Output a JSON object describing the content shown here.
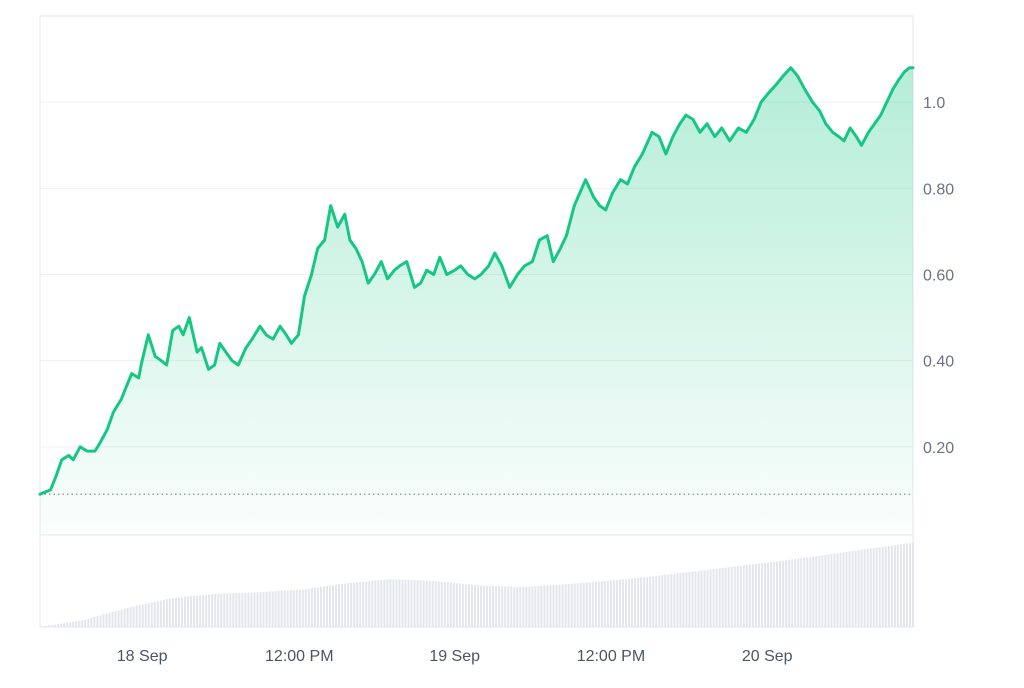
{
  "chart_data": {
    "type": "area",
    "title": "",
    "xlabel": "",
    "ylabel": "",
    "line_color": "#16c784",
    "fill_color": "#16c784",
    "baseline_value": 0.09,
    "ylim": [
      0,
      1.2
    ],
    "y_ticks": [
      {
        "value": 0.2,
        "label": "0.20"
      },
      {
        "value": 0.4,
        "label": "0.40"
      },
      {
        "value": 0.6,
        "label": "0.60"
      },
      {
        "value": 0.8,
        "label": "0.80"
      },
      {
        "value": 1.0,
        "label": "1.0"
      }
    ],
    "x_ticks": [
      {
        "t": 0.117,
        "label": "18 Sep"
      },
      {
        "t": 0.297,
        "label": "12:00 PM"
      },
      {
        "t": 0.475,
        "label": "19 Sep"
      },
      {
        "t": 0.654,
        "label": "12:00 PM"
      },
      {
        "t": 0.833,
        "label": "20 Sep"
      }
    ],
    "series": [
      {
        "x": [
          0.0,
          0.012,
          0.018,
          0.025,
          0.033,
          0.038,
          0.046,
          0.054,
          0.063,
          0.069,
          0.077,
          0.084,
          0.093,
          0.099,
          0.105,
          0.113,
          0.117,
          0.124,
          0.132,
          0.139,
          0.145,
          0.152,
          0.159,
          0.164,
          0.171,
          0.18,
          0.185,
          0.193,
          0.2,
          0.206,
          0.213,
          0.22,
          0.227,
          0.236,
          0.243,
          0.252,
          0.259,
          0.267,
          0.275,
          0.282,
          0.288,
          0.296,
          0.303,
          0.311,
          0.318,
          0.326,
          0.333,
          0.341,
          0.349,
          0.355,
          0.362,
          0.369,
          0.376,
          0.383,
          0.391,
          0.398,
          0.406,
          0.412,
          0.42,
          0.429,
          0.436,
          0.443,
          0.451,
          0.458,
          0.466,
          0.475,
          0.482,
          0.49,
          0.498,
          0.505,
          0.514,
          0.521,
          0.529,
          0.538,
          0.547,
          0.555,
          0.564,
          0.572,
          0.581,
          0.588,
          0.596,
          0.603,
          0.612,
          0.625,
          0.634,
          0.641,
          0.648,
          0.656,
          0.665,
          0.673,
          0.681,
          0.69,
          0.701,
          0.709,
          0.717,
          0.725,
          0.733,
          0.74,
          0.748,
          0.756,
          0.764,
          0.773,
          0.781,
          0.79,
          0.8,
          0.809,
          0.818,
          0.826,
          0.834,
          0.843,
          0.851,
          0.86,
          0.868,
          0.876,
          0.885,
          0.893,
          0.9,
          0.908,
          0.915,
          0.921,
          0.928,
          0.935,
          0.941,
          0.949,
          0.956,
          0.963,
          0.97,
          0.977,
          0.983,
          0.99,
          0.996,
          1.0
        ],
        "values": [
          0.09,
          0.1,
          0.13,
          0.17,
          0.18,
          0.17,
          0.2,
          0.19,
          0.19,
          0.21,
          0.24,
          0.28,
          0.31,
          0.34,
          0.37,
          0.36,
          0.4,
          0.46,
          0.41,
          0.4,
          0.39,
          0.47,
          0.48,
          0.46,
          0.5,
          0.42,
          0.43,
          0.38,
          0.39,
          0.44,
          0.42,
          0.4,
          0.39,
          0.43,
          0.45,
          0.48,
          0.46,
          0.45,
          0.48,
          0.46,
          0.44,
          0.46,
          0.55,
          0.6,
          0.66,
          0.68,
          0.76,
          0.71,
          0.74,
          0.68,
          0.66,
          0.63,
          0.58,
          0.6,
          0.63,
          0.59,
          0.61,
          0.62,
          0.63,
          0.57,
          0.58,
          0.61,
          0.6,
          0.64,
          0.6,
          0.61,
          0.62,
          0.6,
          0.59,
          0.6,
          0.62,
          0.65,
          0.62,
          0.57,
          0.6,
          0.62,
          0.63,
          0.68,
          0.69,
          0.63,
          0.66,
          0.69,
          0.76,
          0.82,
          0.78,
          0.76,
          0.75,
          0.79,
          0.82,
          0.81,
          0.85,
          0.88,
          0.93,
          0.92,
          0.88,
          0.92,
          0.95,
          0.97,
          0.96,
          0.93,
          0.95,
          0.92,
          0.94,
          0.91,
          0.94,
          0.93,
          0.96,
          1.0,
          1.02,
          1.04,
          1.06,
          1.08,
          1.06,
          1.03,
          1.0,
          0.98,
          0.95,
          0.93,
          0.92,
          0.91,
          0.94,
          0.92,
          0.9,
          0.93,
          0.95,
          0.97,
          1.0,
          1.03,
          1.05,
          1.07,
          1.08,
          1.08
        ]
      }
    ],
    "volume_ylim": [
      0,
      1
    ],
    "volume": {
      "x": [
        0.0,
        0.05,
        0.1,
        0.15,
        0.2,
        0.25,
        0.3,
        0.35,
        0.4,
        0.45,
        0.5,
        0.55,
        0.6,
        0.65,
        0.7,
        0.75,
        0.8,
        0.85,
        0.9,
        0.95,
        1.0
      ],
      "values": [
        0.0,
        0.08,
        0.22,
        0.33,
        0.38,
        0.4,
        0.43,
        0.5,
        0.55,
        0.53,
        0.48,
        0.46,
        0.49,
        0.53,
        0.58,
        0.64,
        0.7,
        0.76,
        0.83,
        0.9,
        0.97
      ]
    }
  }
}
